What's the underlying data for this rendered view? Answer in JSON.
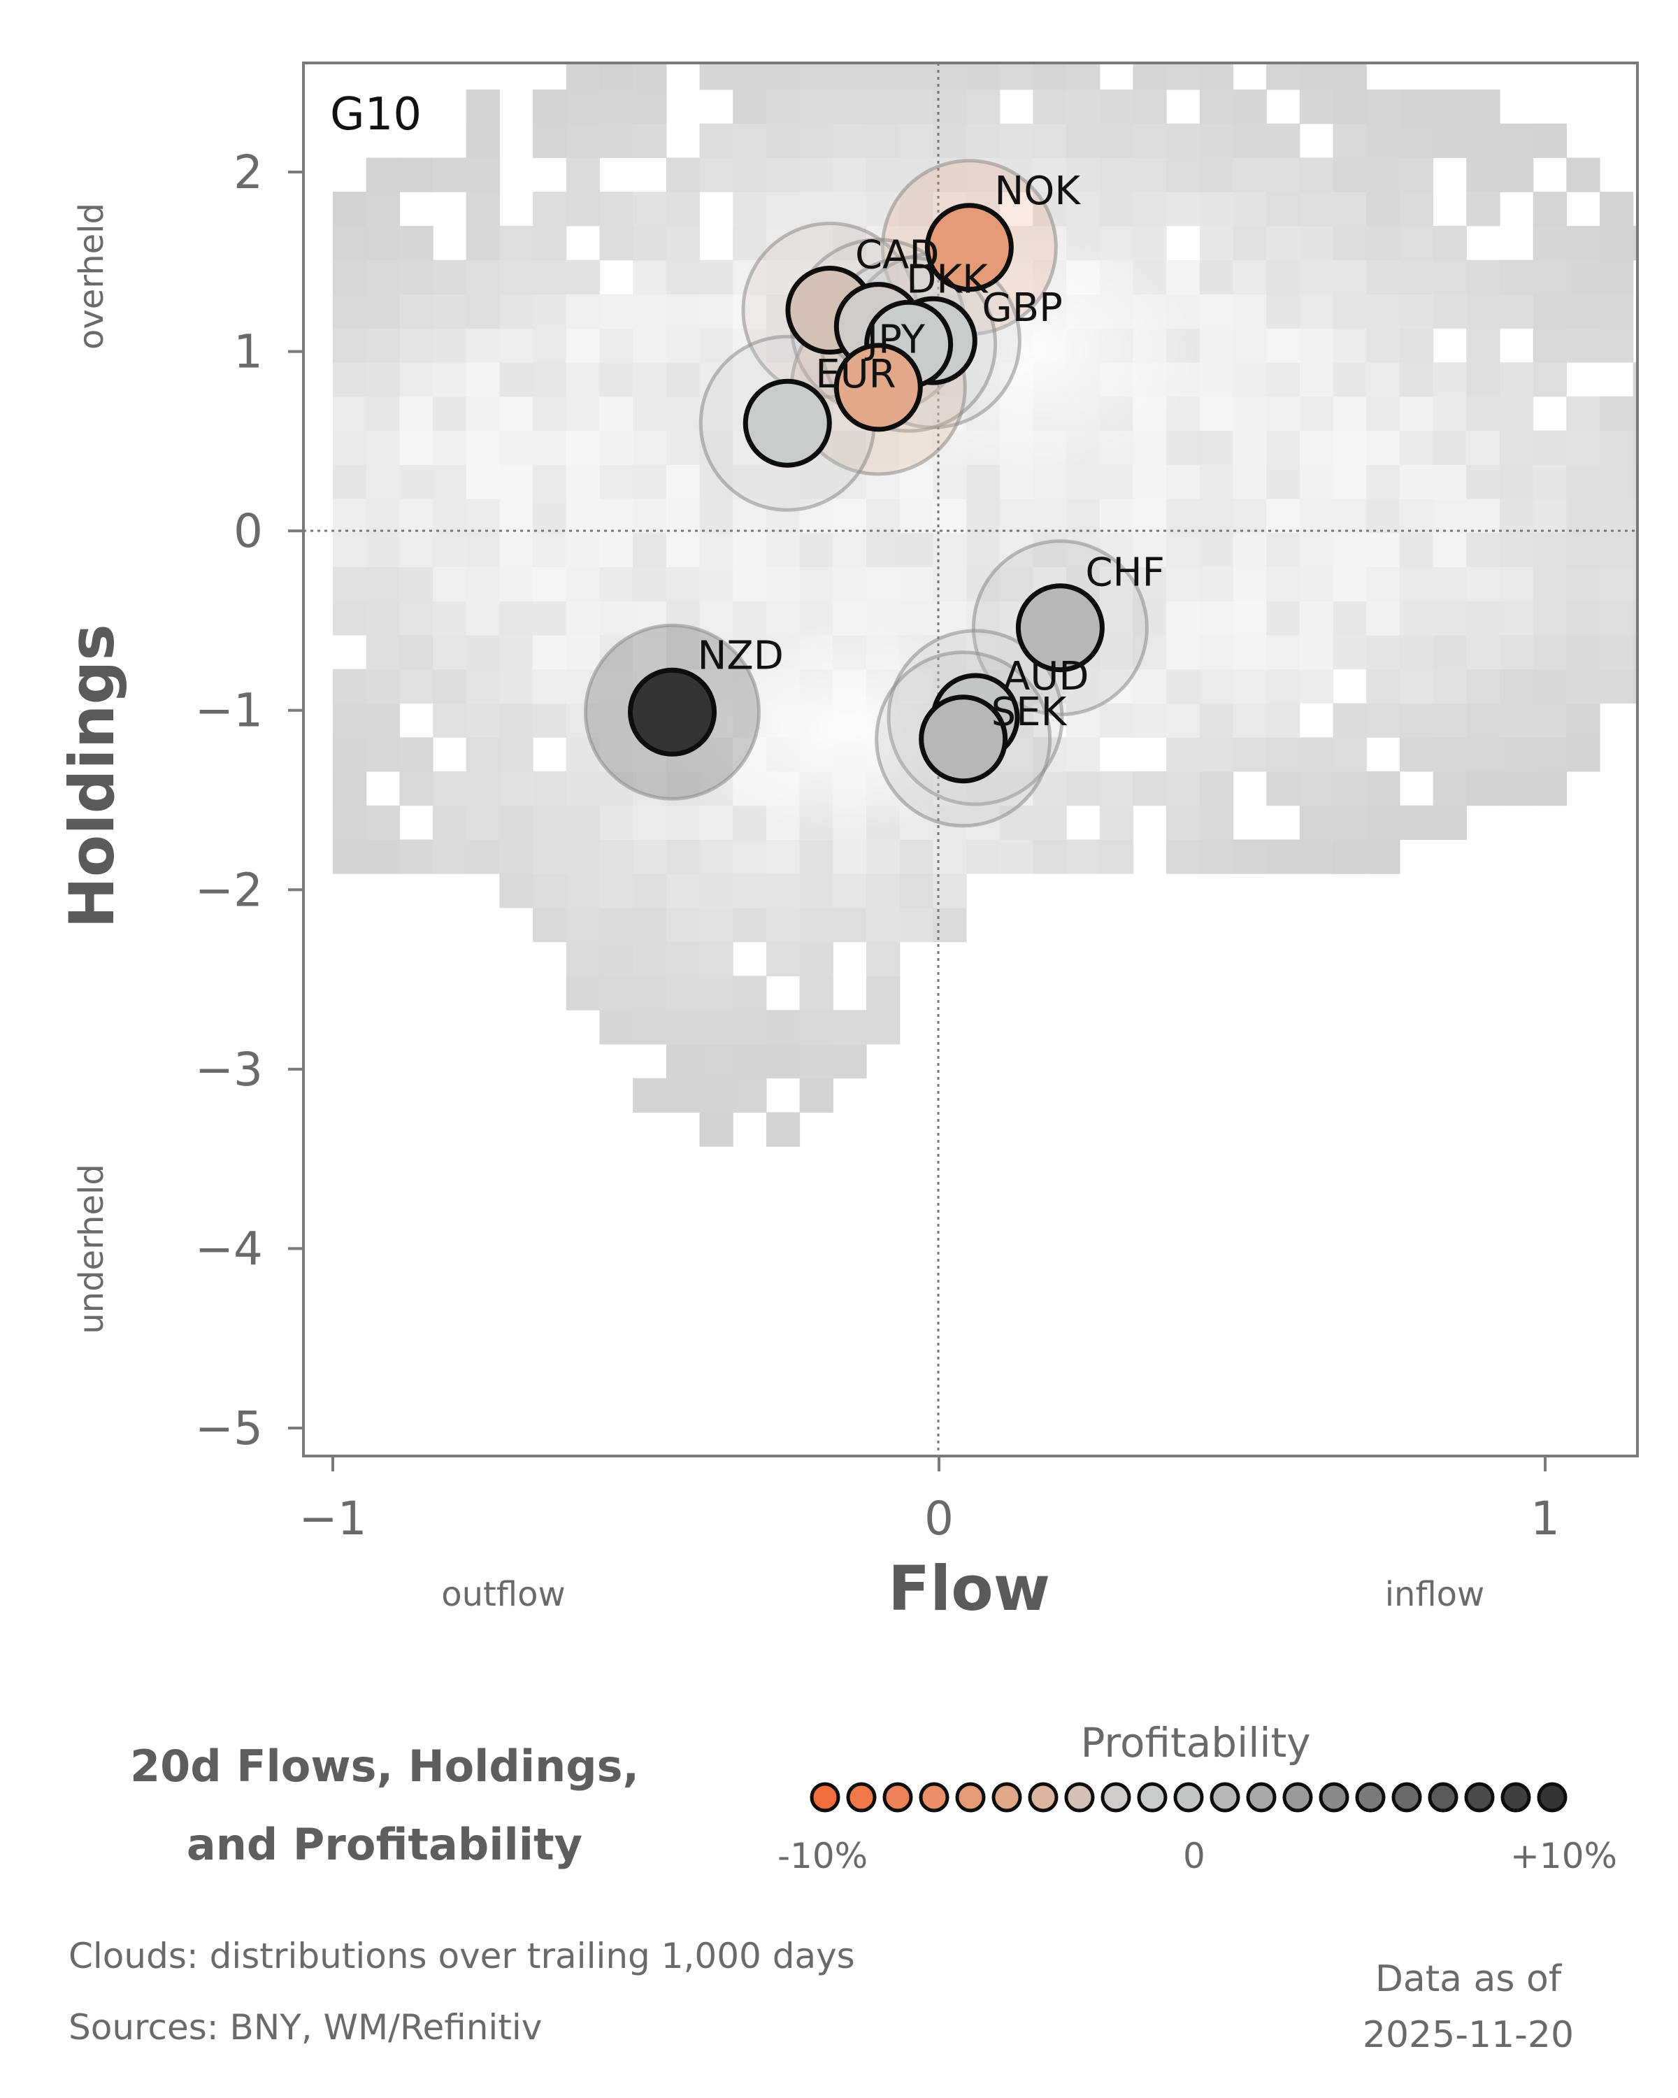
{
  "chart_data": {
    "type": "scatter",
    "panel_label": "G10",
    "xlabel": "Flow",
    "ylabel": "Holdings",
    "x_direction_labels": {
      "left": "outflow",
      "right": "inflow"
    },
    "y_direction_labels": {
      "top": "overheld",
      "bottom": "underheld"
    },
    "xlim": [
      -1.05,
      1.15
    ],
    "ylim": [
      -5.15,
      2.65
    ],
    "x_ticks": [
      -1,
      0,
      1
    ],
    "x_tick_labels": [
      "−1",
      "0",
      "1"
    ],
    "y_ticks": [
      2,
      1,
      0,
      -1,
      -2,
      -3,
      -4,
      -5
    ],
    "y_tick_labels": [
      "2",
      "1",
      "0",
      "−1",
      "−2",
      "−3",
      "−4",
      "−5"
    ],
    "reference_lines": {
      "x": 0,
      "y": 0,
      "style": "dotted"
    },
    "background": "heatmap cloud of historical flow/holdings observations",
    "series": [
      {
        "name": "NOK",
        "x": 0.05,
        "y": 1.58,
        "profitability": -6
      },
      {
        "name": "CAD",
        "x": -0.18,
        "y": 1.23,
        "profitability": -3
      },
      {
        "name": "DKK",
        "x": -0.1,
        "y": 1.14,
        "profitability": -2
      },
      {
        "name": "GBP",
        "x": -0.01,
        "y": 1.06,
        "profitability": -1
      },
      {
        "name": "JPY",
        "x": -0.05,
        "y": 1.04,
        "profitability": -1
      },
      {
        "name": "EUR",
        "x": -0.1,
        "y": 0.8,
        "profitability": -5
      },
      {
        "name": "",
        "x": -0.25,
        "y": 0.6,
        "profitability": -1
      },
      {
        "name": "CHF",
        "x": 0.2,
        "y": -0.54,
        "profitability": 1
      },
      {
        "name": "NZD",
        "x": -0.44,
        "y": -1.01,
        "profitability": 10
      },
      {
        "name": "AUD",
        "x": 0.06,
        "y": -1.04,
        "profitability": 0
      },
      {
        "name": "SEK",
        "x": 0.04,
        "y": -1.16,
        "profitability": 1
      }
    ],
    "colorbar": {
      "title": "Profitability",
      "min_label": "-10%",
      "mid_label": "0",
      "max_label": "+10%",
      "colors": [
        "#f26d3d",
        "#f2784a",
        "#ee835a",
        "#ea8f69",
        "#e69b78",
        "#e1a88a",
        "#dbb4a0",
        "#d4c1b6",
        "#cfcbc8",
        "#c8cccc",
        "#c2c6c6",
        "#b6b8b8",
        "#a8a9a9",
        "#9a9a9a",
        "#8a8a8a",
        "#7a7a7a",
        "#6a6a6a",
        "#5a5a5a",
        "#4b4b4b",
        "#3f3f3f",
        "#343434"
      ]
    }
  },
  "title": {
    "line1": "20d Flows, Holdings,",
    "line2": "and Profitability"
  },
  "notes": {
    "clouds": "Clouds:  distributions over trailing 1,000 days",
    "sources": "Sources:  BNY, WM/Refinitiv"
  },
  "as_of": {
    "label": "Data as of",
    "date": "2025-11-20"
  }
}
